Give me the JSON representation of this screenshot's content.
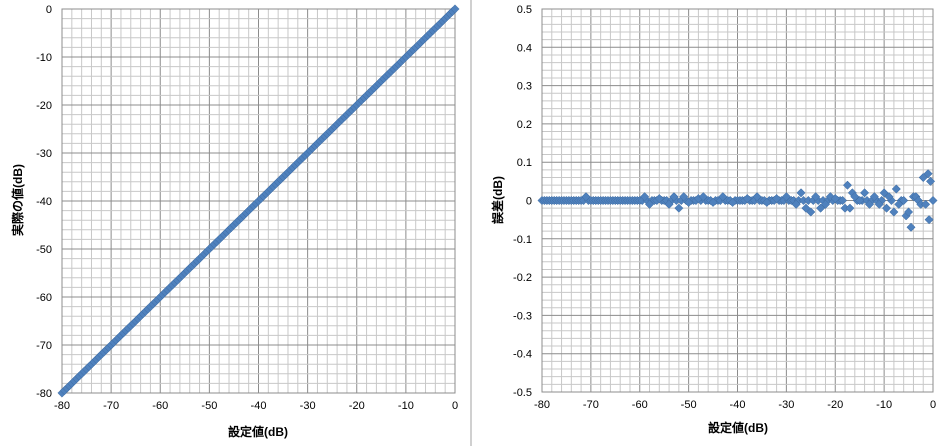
{
  "chart_data": [
    {
      "type": "scatter",
      "title": "",
      "xlabel": "設定値(dB)",
      "ylabel": "実際の値(dB)",
      "xlim": [
        -80,
        0
      ],
      "ylim": [
        -80,
        0
      ],
      "x_ticks": [
        "-80",
        "-70",
        "-60",
        "-50",
        "-40",
        "-30",
        "-20",
        "-10",
        "0"
      ],
      "y_ticks": [
        "0",
        "-10",
        "-20",
        "-30",
        "-40",
        "-50",
        "-60",
        "-70",
        "-80"
      ],
      "grid": true,
      "marker_color": "#4F81BD",
      "series": [
        {
          "relation": "y = x",
          "x_start": -80,
          "x_end": 0,
          "x_step": 0.5
        }
      ]
    },
    {
      "type": "scatter",
      "title": "",
      "xlabel": "設定値(dB)",
      "ylabel": "誤差(dB)",
      "xlim": [
        -80,
        0
      ],
      "ylim": [
        -0.5,
        0.5
      ],
      "x_ticks": [
        "-80",
        "-70",
        "-60",
        "-50",
        "-40",
        "-30",
        "-20",
        "-10",
        "0"
      ],
      "y_ticks": [
        "0.5",
        "0.4",
        "0.3",
        "0.2",
        "0.1",
        "0",
        "-0.1",
        "-0.2",
        "-0.3",
        "-0.4",
        "-0.5"
      ],
      "grid": true,
      "marker_color": "#4F81BD",
      "points_nonzero": [
        [
          -71,
          0.01
        ],
        [
          -59,
          0.01
        ],
        [
          -58,
          -0.01
        ],
        [
          -56,
          0.005
        ],
        [
          -54,
          -0.01
        ],
        [
          -53,
          0.01
        ],
        [
          -52,
          -0.02
        ],
        [
          -51,
          0.01
        ],
        [
          -50,
          -0.005
        ],
        [
          -48,
          0.005
        ],
        [
          -47,
          0.01
        ],
        [
          -45,
          -0.005
        ],
        [
          -43,
          0.01
        ],
        [
          -41,
          -0.005
        ],
        [
          -38,
          0.005
        ],
        [
          -36,
          0.01
        ],
        [
          -34,
          -0.005
        ],
        [
          -32,
          0.005
        ],
        [
          -30,
          0.01
        ],
        [
          -28,
          -0.01
        ],
        [
          -27,
          0.02
        ],
        [
          -26,
          -0.02
        ],
        [
          -25,
          -0.03
        ],
        [
          -24,
          0.01
        ],
        [
          -23,
          -0.02
        ],
        [
          -22,
          -0.01
        ],
        [
          -21,
          0.01
        ],
        [
          -20,
          0.005
        ],
        [
          -18,
          -0.02
        ],
        [
          -17.5,
          0.04
        ],
        [
          -17,
          -0.02
        ],
        [
          -16.5,
          0.02
        ],
        [
          -16,
          0.01
        ],
        [
          -15,
          0.0
        ],
        [
          -14,
          0.02
        ],
        [
          -13,
          -0.01
        ],
        [
          -12,
          0.01
        ],
        [
          -11,
          -0.01
        ],
        [
          -10,
          0.02
        ],
        [
          -9.5,
          -0.02
        ],
        [
          -9,
          0.01
        ],
        [
          -8,
          -0.03
        ],
        [
          -7.5,
          0.03
        ],
        [
          -7,
          -0.01
        ],
        [
          -6,
          0.0
        ],
        [
          -5.5,
          -0.04
        ],
        [
          -5,
          -0.03
        ],
        [
          -4.5,
          -0.07
        ],
        [
          -4,
          0.01
        ],
        [
          -3.5,
          0.01
        ],
        [
          -3,
          0.0
        ],
        [
          -2.5,
          -0.01
        ],
        [
          -2,
          0.06
        ],
        [
          -1.5,
          -0.01
        ],
        [
          -1,
          0.07
        ],
        [
          -0.8,
          -0.05
        ],
        [
          -0.5,
          0.05
        ]
      ],
      "baseline_zero": {
        "x_start": -80,
        "x_end": 0,
        "x_step": 0.5,
        "y": 0
      }
    }
  ]
}
